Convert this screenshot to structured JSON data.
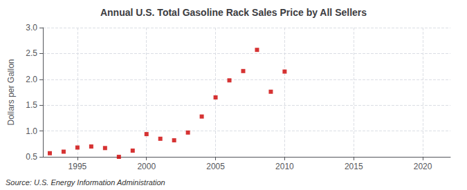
{
  "chart_data": {
    "type": "scatter",
    "title": "Annual U.S. Total Gasoline Rack Sales Price by All Sellers",
    "ylabel": "Dollars per Gallon",
    "annotations": [
      "Source: U.S. Energy Information Administration"
    ],
    "x": [
      1993,
      1994,
      1995,
      1996,
      1997,
      1998,
      1999,
      2000,
      2001,
      2002,
      2003,
      2004,
      2005,
      2006,
      2007,
      2008,
      2009,
      2010
    ],
    "values": [
      0.57,
      0.6,
      0.68,
      0.7,
      0.67,
      0.5,
      0.62,
      0.94,
      0.85,
      0.82,
      0.97,
      1.28,
      1.65,
      1.98,
      2.16,
      2.57,
      1.76,
      2.15
    ],
    "color": "#cc0000",
    "marker": "square",
    "xlim": [
      1992.5,
      2022
    ],
    "ylim": [
      0.5,
      3.0
    ],
    "xticks": [
      1995,
      2000,
      2005,
      2010,
      2015,
      2020
    ],
    "yticks": [
      0.5,
      {
        "value": 1.0,
        "label": "1.0"
      },
      1.5,
      {
        "value": 2.0,
        "label": "2.0"
      },
      2.5,
      {
        "value": 3.0,
        "label": "3.0"
      }
    ],
    "grid": true
  }
}
